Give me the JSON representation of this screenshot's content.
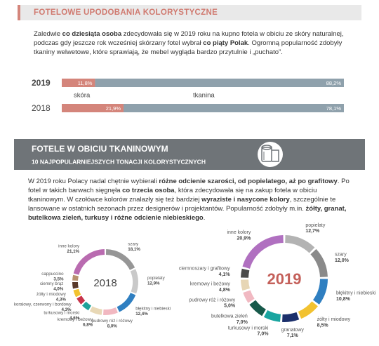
{
  "section1": {
    "title": "FOTELOWE UPODOBANIA KOLORYSTYCZNE"
  },
  "intro": {
    "runs": [
      {
        "text": "Zaledwie ",
        "bold": false
      },
      {
        "text": "co dziesiąta osoba",
        "bold": true
      },
      {
        "text": " zdecydowała się w 2019 roku na kupno fotela w obiciu ze skóry naturalnej, podczas gdy jeszcze rok wcześniej skórzany fotel wybrał ",
        "bold": false
      },
      {
        "text": "co piąty Polak",
        "bold": true
      },
      {
        "text": ". Ogromną popularność zdobyły tkaniny welwetowe, które sprawiają, że mebel wygląda bardzo przytulnie i „puchato”.",
        "bold": false
      }
    ]
  },
  "section2": {
    "title": "FOTELE W OBICIU TKANINOWYM",
    "subtitle": "10 NAJPOPULARNIEJSZYCH TONACJI KOLORYSTYCZNYCH"
  },
  "paragraph": {
    "runs": [
      {
        "text": "W 2019 roku Polacy nadal chętnie wybierali ",
        "bold": false
      },
      {
        "text": "różne odcienie szarości, od popielatego, aż po grafitowy",
        "bold": true
      },
      {
        "text": ". Po fotel w takich barwach sięgnęła ",
        "bold": false
      },
      {
        "text": "co trzecia osoba",
        "bold": true
      },
      {
        "text": ", która zdecydowała się na zakup fotela w obiciu tkaninowym. W czołówce kolorów znalazły się też bardziej ",
        "bold": false
      },
      {
        "text": "wyraziste i nasycone kolory",
        "bold": true
      },
      {
        "text": ", szczególnie te lansowane w ostatnich sezonach przez designerów i projektantów. Popularność zdobyły m.in. ",
        "bold": false
      },
      {
        "text": "żółty, granat, butelkowa zieleń, turkusy i różne odcienie niebieskiego",
        "bold": true
      },
      {
        "text": ".",
        "bold": false
      }
    ]
  },
  "chart_data": [
    {
      "type": "bar",
      "orientation": "horizontal",
      "stacked": true,
      "categories": [
        "2019",
        "2018"
      ],
      "series": [
        {
          "name": "skóra",
          "color": "#d4857b",
          "values": [
            11.8,
            21.9
          ],
          "value_labels": [
            "11,8%",
            "21,9%"
          ]
        },
        {
          "name": "tkanina",
          "color": "#8fa1ac",
          "values": [
            88.2,
            78.1
          ],
          "value_labels": [
            "88,2%",
            "78,1%"
          ]
        }
      ]
    },
    {
      "type": "donut",
      "title": "2018",
      "categories": [
        "szary",
        "popielaty",
        "błękitny i niebieski",
        "pudrowy róż i różowy",
        "kremowy i beżowy",
        "turkusowy i morski",
        "koralowy, czerwony i bordowy",
        "żółty i miodowy",
        "ciemny brąz",
        "cappuccino",
        "inne kolory"
      ],
      "values": [
        18.1,
        12.9,
        12.4,
        8.0,
        6.8,
        4.6,
        4.3,
        4.3,
        4.0,
        3.5,
        21.1
      ],
      "value_labels": [
        "18,1%",
        "12,9%",
        "12,4%",
        "8,0%",
        "6,8%",
        "4,6%",
        "4,3%",
        "4,3%",
        "4,0%",
        "3,5%",
        "21,1%"
      ],
      "colors": [
        "#969696",
        "#c9c9c9",
        "#2f7fc1",
        "#f1b8c1",
        "#e8d8b6",
        "#1fa39a",
        "#c8344a",
        "#f2c230",
        "#5a3a2a",
        "#b89270",
        "#b96bb0"
      ]
    },
    {
      "type": "donut",
      "title": "2019",
      "categories": [
        "popielaty",
        "szary",
        "błękitny i niebieski",
        "żółty i miodowy",
        "granatowy",
        "turkusowy i morski",
        "butelkowa zieleń",
        "pudrowy róż i różowy",
        "kremowy i beżowy",
        "ciemnoszary i grafitowy",
        "inne kolory"
      ],
      "values": [
        12.7,
        12.0,
        10.8,
        8.5,
        7.1,
        7.0,
        7.0,
        5.0,
        4.8,
        4.1,
        20.9
      ],
      "value_labels": [
        "12,7%",
        "12,0%",
        "10,8%",
        "8,5%",
        "7,1%",
        "7,0%",
        "7,0%",
        "5,0%",
        "4,8%",
        "4,1%",
        "20,9%"
      ],
      "colors": [
        "#b3b3b3",
        "#8a8a8a",
        "#2f7fc1",
        "#f2c230",
        "#1b2f6b",
        "#1aa5a0",
        "#17594a",
        "#f1b9c2",
        "#e7d6b5",
        "#4a4a4a",
        "#b070c0"
      ]
    }
  ]
}
